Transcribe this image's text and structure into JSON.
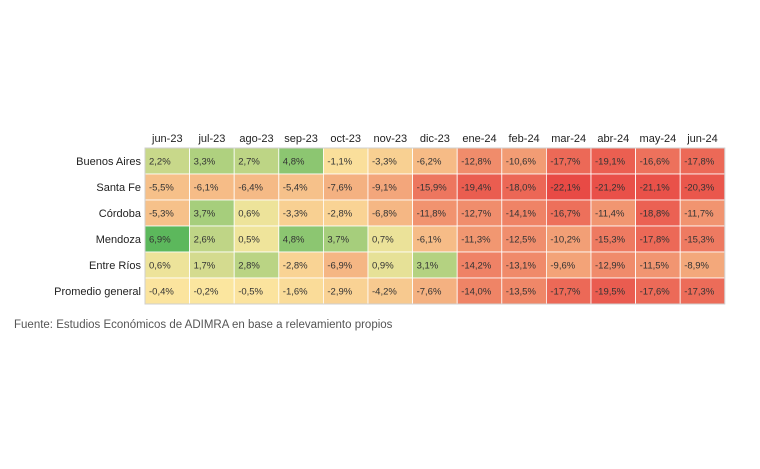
{
  "chart_data": {
    "type": "heatmap",
    "columns": [
      "jun-23",
      "jul-23",
      "ago-23",
      "sep-23",
      "oct-23",
      "nov-23",
      "dic-23",
      "ene-24",
      "feb-24",
      "mar-24",
      "abr-24",
      "may-24",
      "jun-24"
    ],
    "rows": [
      {
        "name": "Buenos Aires",
        "values": [
          2.2,
          3.3,
          2.7,
          4.8,
          -1.1,
          -3.3,
          -6.2,
          -12.8,
          -10.6,
          -17.7,
          -19.1,
          -16.6,
          -17.8
        ],
        "labels": [
          "2,2%",
          "3,3%",
          "2,7%",
          "4,8%",
          "-1,1%",
          "-3,3%",
          "-6,2%",
          "-12,8%",
          "-10,6%",
          "-17,7%",
          "-19,1%",
          "-16,6%",
          "-17,8%"
        ]
      },
      {
        "name": "Santa Fe",
        "values": [
          -5.5,
          -6.1,
          -6.4,
          -5.4,
          -7.6,
          -9.1,
          -15.9,
          -19.4,
          -18.0,
          -22.1,
          -21.2,
          -21.1,
          -20.3
        ],
        "labels": [
          "-5,5%",
          "-6,1%",
          "-6,4%",
          "-5,4%",
          "-7,6%",
          "-9,1%",
          "-15,9%",
          "-19,4%",
          "-18,0%",
          "-22,1%",
          "-21,2%",
          "-21,1%",
          "-20,3%"
        ]
      },
      {
        "name": "Córdoba",
        "values": [
          -5.3,
          3.7,
          0.6,
          -3.3,
          -2.8,
          -6.8,
          -11.8,
          -12.7,
          -14.1,
          -16.7,
          -11.4,
          -18.8,
          -11.7
        ],
        "labels": [
          "-5,3%",
          "3,7%",
          "0,6%",
          "-3,3%",
          "-2,8%",
          "-6,8%",
          "-11,8%",
          "-12,7%",
          "-14,1%",
          "-16,7%",
          "-11,4%",
          "-18,8%",
          "-11,7%"
        ]
      },
      {
        "name": "Mendoza",
        "values": [
          6.9,
          2.6,
          0.5,
          4.8,
          3.7,
          0.7,
          -6.1,
          -11.3,
          -12.5,
          -10.2,
          -15.3,
          -17.8,
          -15.3
        ],
        "labels": [
          "6,9%",
          "2,6%",
          "0,5%",
          "4,8%",
          "3,7%",
          "0,7%",
          "-6,1%",
          "-11,3%",
          "-12,5%",
          "-10,2%",
          "-15,3%",
          "-17,8%",
          "-15,3%"
        ]
      },
      {
        "name": "Entre Ríos",
        "values": [
          0.6,
          1.7,
          2.8,
          -2.8,
          -6.9,
          0.9,
          3.1,
          -14.2,
          -13.1,
          -9.6,
          -12.9,
          -11.5,
          -8.9
        ],
        "labels": [
          "0,6%",
          "1,7%",
          "2,8%",
          "-2,8%",
          "-6,9%",
          "0,9%",
          "3,1%",
          "-14,2%",
          "-13,1%",
          "-9,6%",
          "-12,9%",
          "-11,5%",
          "-8,9%"
        ]
      },
      {
        "name": "Promedio general",
        "values": [
          -0.4,
          -0.2,
          -0.5,
          -1.6,
          -2.9,
          -4.2,
          -7.6,
          -14.0,
          -13.5,
          -17.7,
          -19.5,
          -17.6,
          -17.3
        ],
        "labels": [
          "-0,4%",
          "-0,2%",
          "-0,5%",
          "-1,6%",
          "-2,9%",
          "-4,2%",
          "-7,6%",
          "-14,0%",
          "-13,5%",
          "-17,7%",
          "-19,5%",
          "-17,6%",
          "-17,3%"
        ]
      }
    ],
    "color_scale": {
      "min": -22.1,
      "mid": 0,
      "max": 6.9,
      "low_color": "#e84a45",
      "mid_color": "#fbe7a0",
      "high_color": "#5cb85c"
    }
  },
  "source_note": "Fuente: Estudios Económicos de ADIMRA en base a relevamiento propios"
}
